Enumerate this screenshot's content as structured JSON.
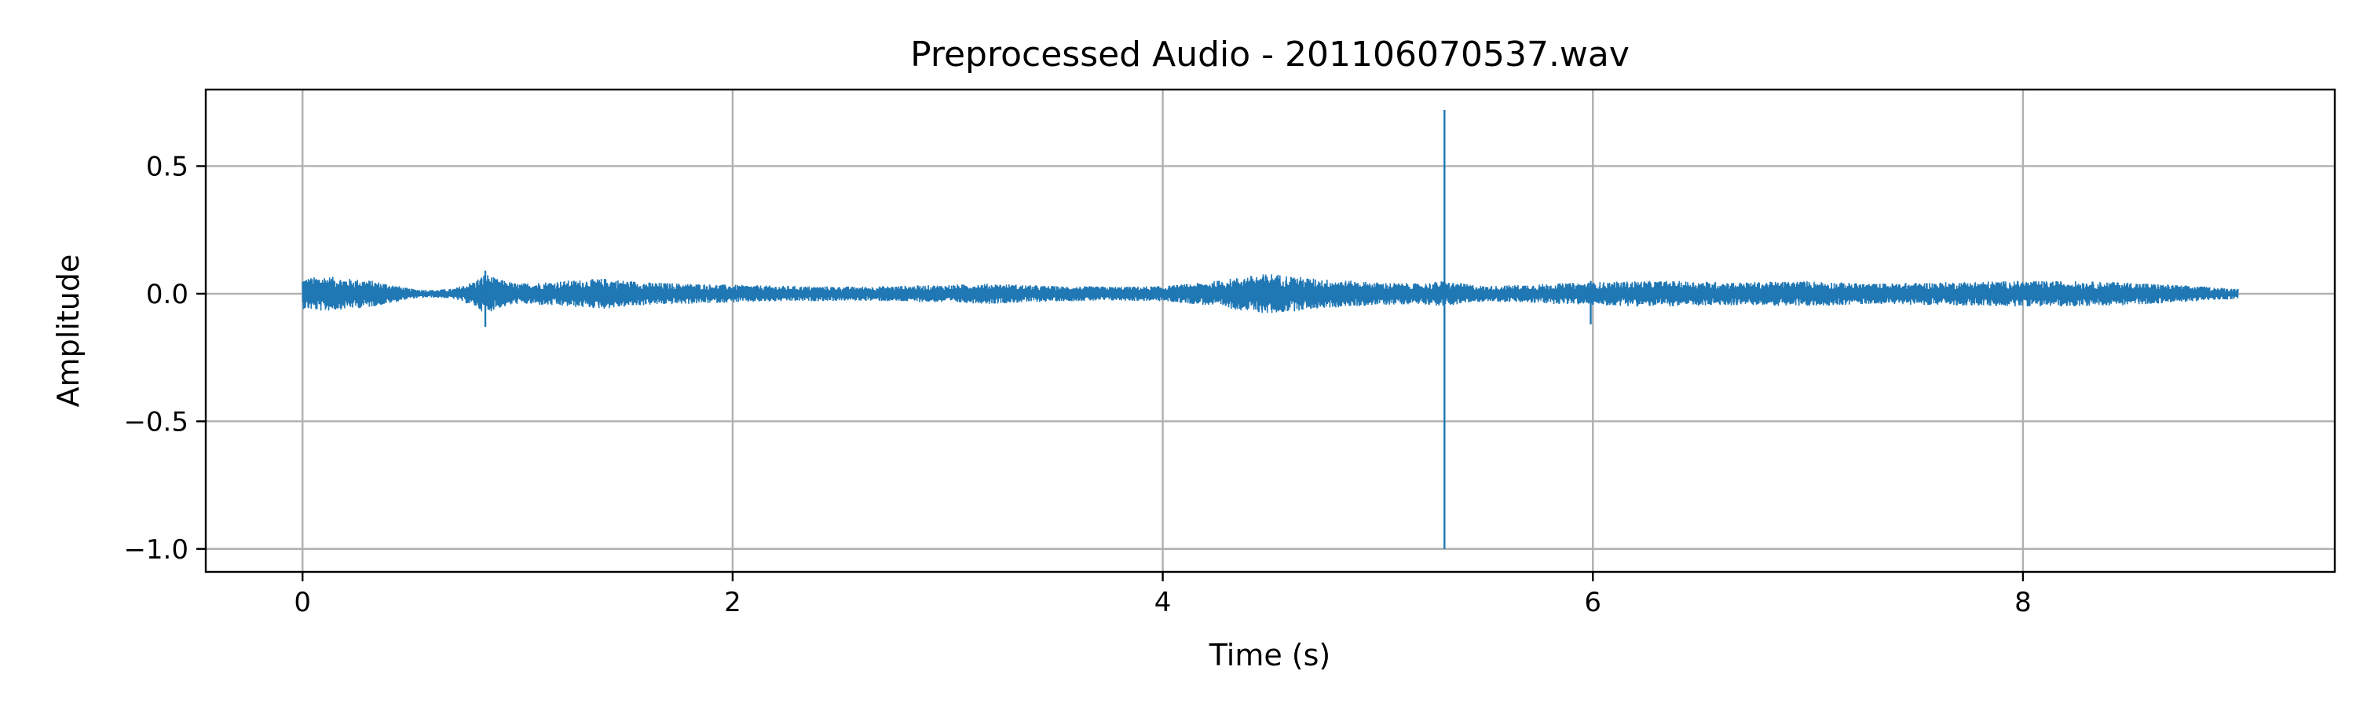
{
  "chart_data": {
    "type": "line",
    "title": "Preprocessed Audio - 201106070537.wav",
    "xlabel": "Time (s)",
    "ylabel": "Amplitude",
    "xlim": [
      -0.45,
      9.45
    ],
    "ylim": [
      -1.09,
      0.8
    ],
    "xticks": [
      0,
      2,
      4,
      6,
      8
    ],
    "xtick_labels": [
      "0",
      "2",
      "4",
      "6",
      "8"
    ],
    "yticks": [
      0.5,
      0.0,
      -0.5,
      -1.0
    ],
    "ytick_labels": [
      "0.5",
      "0.0",
      "−0.5",
      "−1.0"
    ],
    "grid": true,
    "line_color": "#1f77b4",
    "series": [
      {
        "duration_s": 9.0,
        "envelope": {
          "t": [
            0.0,
            0.1,
            0.2,
            0.3,
            0.4,
            0.5,
            0.6,
            0.7,
            0.8,
            0.85,
            0.9,
            1.0,
            1.2,
            1.4,
            1.6,
            1.8,
            2.0,
            2.3,
            2.6,
            3.0,
            3.2,
            3.5,
            3.8,
            4.0,
            4.2,
            4.4,
            4.5,
            4.7,
            4.9,
            5.0,
            5.2,
            5.3,
            5.5,
            5.8,
            6.0,
            6.2,
            6.4,
            6.7,
            7.0,
            7.3,
            7.6,
            7.9,
            8.2,
            8.5,
            8.8,
            9.0
          ],
          "amp": [
            0.06,
            0.07,
            0.06,
            0.055,
            0.04,
            0.02,
            0.015,
            0.02,
            0.05,
            0.08,
            0.06,
            0.04,
            0.05,
            0.06,
            0.045,
            0.04,
            0.035,
            0.03,
            0.028,
            0.035,
            0.04,
            0.03,
            0.028,
            0.03,
            0.045,
            0.07,
            0.08,
            0.06,
            0.05,
            0.045,
            0.04,
            0.05,
            0.03,
            0.04,
            0.045,
            0.05,
            0.05,
            0.045,
            0.05,
            0.04,
            0.045,
            0.05,
            0.05,
            0.045,
            0.03,
            0.02
          ]
        },
        "spikes": [
          {
            "t": 5.31,
            "max": 0.72,
            "min": -1.0
          },
          {
            "t": 5.99,
            "max": 0.05,
            "min": -0.12
          },
          {
            "t": 0.85,
            "max": 0.09,
            "min": -0.13
          }
        ]
      }
    ]
  }
}
